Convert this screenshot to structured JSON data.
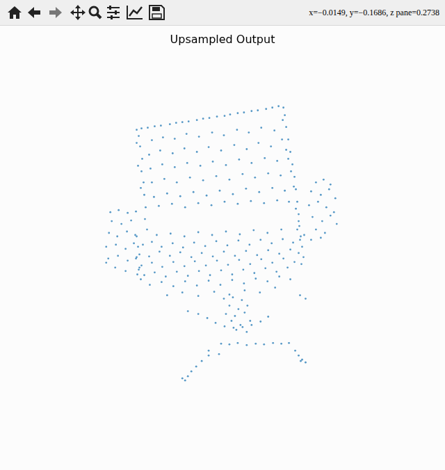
{
  "toolbar": {
    "readout": "x=−0.0149, y=−0.1686, z pane=0.2738"
  },
  "chart_data": {
    "type": "scatter",
    "title": "Upsampled Output",
    "color": "#1f77b4",
    "marker": "circle",
    "grid": false,
    "tick_labels": false,
    "xlim": [
      0,
      640
    ],
    "ylim": [
      676,
      0
    ],
    "x": [
      196,
      203,
      212,
      222,
      231,
      244,
      253,
      262,
      271,
      283,
      292,
      301,
      312,
      323,
      331,
      342,
      351,
      362,
      371,
      383,
      392,
      401,
      408,
      218,
      234,
      251,
      268,
      286,
      305,
      322,
      341,
      358,
      376,
      395,
      407,
      214,
      230,
      248,
      265,
      283,
      300,
      318,
      337,
      355,
      372,
      390,
      406,
      412,
      216,
      233,
      251,
      269,
      288,
      306,
      325,
      344,
      362,
      381,
      399,
      415,
      218,
      236,
      254,
      273,
      292,
      311,
      330,
      349,
      367,
      386,
      404,
      419,
      221,
      240,
      259,
      278,
      297,
      316,
      335,
      354,
      373,
      392,
      410,
      423,
      228,
      247,
      266,
      285,
      304,
      323,
      342,
      361,
      380,
      399,
      416,
      199,
      201,
      204,
      203,
      206,
      207,
      209,
      208,
      211,
      196,
      198,
      202,
      410,
      412,
      415,
      418,
      421,
      424,
      426,
      428,
      430,
      431,
      433,
      426,
      430,
      225,
      245,
      265,
      285,
      305,
      325,
      345,
      365,
      385,
      405,
      205,
      218,
      232,
      248,
      263,
      279,
      295,
      311,
      327,
      343,
      359,
      375,
      391,
      407,
      422,
      200,
      214,
      229,
      244,
      259,
      275,
      290,
      306,
      322,
      338,
      354,
      370,
      386,
      402,
      418,
      430,
      203,
      218,
      233,
      249,
      265,
      280,
      296,
      312,
      328,
      344,
      360,
      376,
      392,
      408,
      424,
      207,
      222,
      238,
      254,
      270,
      286,
      302,
      318,
      334,
      350,
      366,
      382,
      398,
      414,
      215,
      232,
      249,
      266,
      283,
      300,
      317,
      334,
      351,
      368,
      385,
      402,
      418,
      240,
      262,
      285,
      308,
      330,
      352,
      374,
      396,
      428,
      432,
      435,
      437,
      434,
      438,
      196,
      198,
      195,
      199,
      202,
      197,
      158,
      170,
      183,
      195,
      160,
      174,
      188,
      156,
      168,
      182,
      194,
      152,
      166,
      180,
      192,
      155,
      169,
      183,
      196,
      165,
      180,
      152,
      200,
      455,
      466,
      476,
      448,
      462,
      474,
      483,
      445,
      458,
      470,
      481,
      450,
      464,
      476,
      485,
      455,
      468,
      448,
      462,
      322,
      335,
      348,
      330,
      343,
      356,
      325,
      338,
      352,
      333,
      346,
      360,
      340,
      355,
      298,
      310,
      323,
      336,
      349,
      362,
      375,
      386,
      270,
      285,
      432,
      440,
      318,
      330,
      342,
      355,
      368,
      380,
      393,
      405,
      416,
      300,
      290,
      282,
      275,
      270,
      266,
      262,
      425,
      430,
      435,
      440,
      433,
      315,
      300
    ],
    "values": [
      186,
      184,
      183,
      181,
      180,
      178,
      176,
      175,
      174,
      172,
      170,
      169,
      167,
      166,
      164,
      162,
      161,
      159,
      158,
      156,
      154,
      152,
      154,
      201,
      197,
      199,
      192,
      196,
      190,
      194,
      186,
      190,
      183,
      187,
      172,
      222,
      216,
      220,
      213,
      218,
      211,
      216,
      208,
      214,
      205,
      210,
      200,
      215,
      242,
      236,
      240,
      234,
      238,
      232,
      237,
      229,
      234,
      227,
      231,
      228,
      262,
      257,
      262,
      255,
      259,
      253,
      258,
      250,
      255,
      249,
      252,
      246,
      283,
      278,
      282,
      276,
      281,
      274,
      279,
      271,
      276,
      270,
      274,
      268,
      296,
      293,
      298,
      292,
      295,
      290,
      293,
      289,
      292,
      288,
      290,
      195,
      210,
      228,
      246,
      262,
      280,
      298,
      315,
      330,
      205,
      238,
      270,
      165,
      182,
      200,
      218,
      236,
      254,
      272,
      290,
      308,
      325,
      340,
      300,
      318,
      338,
      336,
      340,
      334,
      338,
      333,
      337,
      331,
      335,
      330,
      352,
      348,
      355,
      350,
      356,
      349,
      354,
      347,
      353,
      346,
      352,
      345,
      350,
      344,
      349,
      366,
      369,
      362,
      368,
      363,
      370,
      364,
      369,
      362,
      368,
      361,
      367,
      360,
      365,
      359,
      364,
      382,
      378,
      384,
      377,
      383,
      376,
      382,
      375,
      381,
      374,
      380,
      373,
      378,
      372,
      377,
      396,
      392,
      398,
      391,
      397,
      390,
      396,
      389,
      395,
      388,
      393,
      386,
      391,
      385,
      410,
      406,
      412,
      405,
      411,
      404,
      410,
      403,
      408,
      401,
      405,
      398,
      402,
      425,
      421,
      426,
      420,
      424,
      418,
      421,
      414,
      330,
      345,
      355,
      370,
      380,
      338,
      340,
      355,
      372,
      388,
      402,
      395,
      305,
      302,
      306,
      304,
      318,
      322,
      317,
      335,
      340,
      333,
      338,
      355,
      352,
      358,
      350,
      372,
      368,
      375,
      370,
      385,
      390,
      378,
      385,
      262,
      258,
      265,
      275,
      280,
      272,
      285,
      295,
      290,
      298,
      305,
      312,
      318,
      310,
      322,
      330,
      335,
      345,
      342,
      430,
      428,
      432,
      440,
      445,
      440,
      452,
      455,
      450,
      462,
      468,
      462,
      475,
      478,
      458,
      465,
      470,
      472,
      471,
      468,
      463,
      456,
      448,
      452,
      425,
      430,
      495,
      496,
      494,
      497,
      495,
      496,
      494,
      495,
      494,
      512,
      520,
      528,
      535,
      542,
      548,
      545,
      505,
      512,
      518,
      522,
      520,
      510,
      505
    ]
  }
}
